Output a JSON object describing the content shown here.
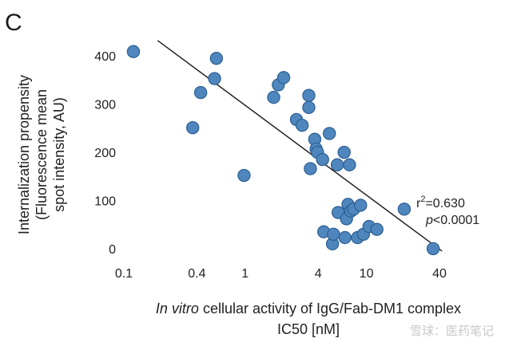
{
  "panel_label": "C",
  "watermark": "雪球：医药笔记",
  "chart_data": {
    "type": "scatter",
    "x_scale": "log",
    "xlim": [
      0.09,
      48
    ],
    "ylim": [
      -20,
      430
    ],
    "x_ticks": [
      0.1,
      0.4,
      1,
      4,
      10,
      40
    ],
    "x_tick_labels": [
      "0.1",
      "0.4",
      "1",
      "4",
      "10",
      "40"
    ],
    "y_ticks": [
      0,
      100,
      200,
      300,
      400
    ],
    "y_tick_labels": [
      "0",
      "100",
      "200",
      "300",
      "400"
    ],
    "ylabel_lines": [
      "Internalization propensity",
      "(Fluorescence mean",
      "spot intensity, AU)"
    ],
    "xlabel_italic": "In vitro",
    "xlabel_rest": " cellular activity of IgG/Fab-DM1 complex",
    "xlabel_line2": "IC50 [nM]",
    "annotation_r2_prefix": "r",
    "annotation_r2_sup": "2",
    "annotation_r2_value": "=0.630",
    "annotation_p_italic": "p",
    "annotation_p_value": "<0.0001",
    "regression_line": {
      "x": [
        0.19,
        42
      ],
      "y": [
        432,
        -5
      ]
    },
    "points": [
      {
        "x": 0.12,
        "y": 409
      },
      {
        "x": 0.37,
        "y": 251
      },
      {
        "x": 0.43,
        "y": 324
      },
      {
        "x": 0.56,
        "y": 353
      },
      {
        "x": 0.58,
        "y": 395
      },
      {
        "x": 0.98,
        "y": 152
      },
      {
        "x": 1.72,
        "y": 314
      },
      {
        "x": 1.88,
        "y": 340
      },
      {
        "x": 2.08,
        "y": 355
      },
      {
        "x": 2.65,
        "y": 268
      },
      {
        "x": 2.95,
        "y": 256
      },
      {
        "x": 3.35,
        "y": 318
      },
      {
        "x": 3.35,
        "y": 293
      },
      {
        "x": 3.45,
        "y": 166
      },
      {
        "x": 3.75,
        "y": 227
      },
      {
        "x": 3.85,
        "y": 207
      },
      {
        "x": 3.95,
        "y": 200
      },
      {
        "x": 4.35,
        "y": 185
      },
      {
        "x": 4.45,
        "y": 35
      },
      {
        "x": 4.95,
        "y": 239
      },
      {
        "x": 5.25,
        "y": 10
      },
      {
        "x": 5.35,
        "y": 30
      },
      {
        "x": 5.75,
        "y": 174
      },
      {
        "x": 5.85,
        "y": 75
      },
      {
        "x": 6.55,
        "y": 200
      },
      {
        "x": 6.65,
        "y": 23
      },
      {
        "x": 6.85,
        "y": 62
      },
      {
        "x": 7.05,
        "y": 92
      },
      {
        "x": 7.25,
        "y": 174
      },
      {
        "x": 7.45,
        "y": 78
      },
      {
        "x": 7.85,
        "y": 82
      },
      {
        "x": 8.45,
        "y": 23
      },
      {
        "x": 8.95,
        "y": 90
      },
      {
        "x": 9.45,
        "y": 30
      },
      {
        "x": 10.5,
        "y": 46
      },
      {
        "x": 12.2,
        "y": 40
      },
      {
        "x": 20.5,
        "y": 82
      },
      {
        "x": 35.5,
        "y": 0
      }
    ]
  }
}
